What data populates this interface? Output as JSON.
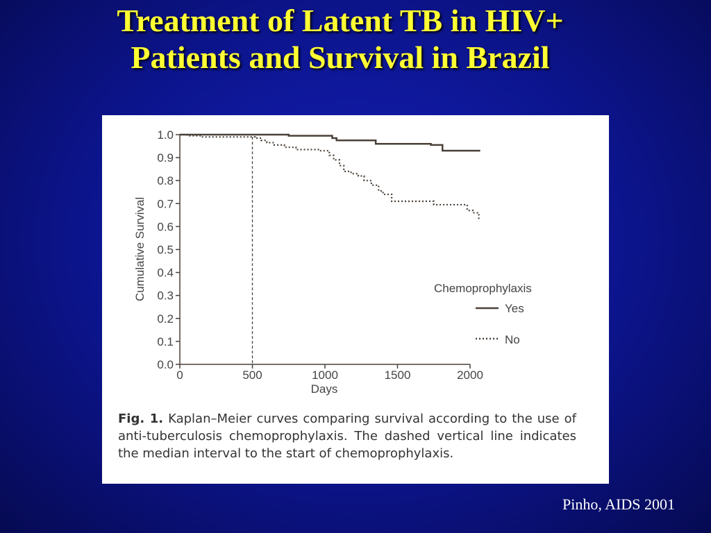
{
  "slide": {
    "title_line1": "Treatment of Latent TB in HIV+",
    "title_line2": "Patients and Survival in Brazil",
    "citation": "Pinho, AIDS 2001",
    "colors": {
      "background": "#0c148c",
      "title": "#ffff33",
      "citation": "#ffffff"
    }
  },
  "caption": {
    "label": "Fig. 1.",
    "text": "Kaplan–Meier curves comparing survival according to the use of anti-tuberculosis chemoprophylaxis. The dashed vertical line indicates the median interval to the start of chemoprophylaxis."
  },
  "chart_data": {
    "type": "line",
    "title": "",
    "xlabel": "Days",
    "ylabel": "Cumulative Survival",
    "xlim": [
      0,
      2000
    ],
    "ylim": [
      0.0,
      1.0
    ],
    "xticks": [
      "0",
      "500",
      "1000",
      "1500",
      "2000"
    ],
    "yticks": [
      "0.0",
      "0.1",
      "0.2",
      "0.3",
      "0.4",
      "0.5",
      "0.6",
      "0.7",
      "0.8",
      "0.9",
      "1.0"
    ],
    "grid": false,
    "legend": {
      "title": "Chemoprophylaxis",
      "placement": "right"
    },
    "reference_line": {
      "x": 500,
      "style": "dashed"
    },
    "series": [
      {
        "name": "Yes",
        "style": "solid",
        "x": [
          0,
          750,
          1050,
          1080,
          1350,
          1730,
          1810,
          2070
        ],
        "y": [
          1.0,
          0.995,
          0.985,
          0.975,
          0.96,
          0.955,
          0.93,
          0.93
        ]
      },
      {
        "name": "No",
        "style": "dotted",
        "x": [
          0,
          50,
          150,
          480,
          520,
          560,
          600,
          650,
          720,
          800,
          960,
          1030,
          1060,
          1100,
          1130,
          1180,
          1230,
          1270,
          1320,
          1370,
          1400,
          1460,
          1500,
          1750,
          1980,
          2020,
          2060
        ],
        "y": [
          1.0,
          0.995,
          0.99,
          0.99,
          0.985,
          0.975,
          0.965,
          0.955,
          0.945,
          0.935,
          0.93,
          0.91,
          0.89,
          0.865,
          0.84,
          0.83,
          0.82,
          0.8,
          0.78,
          0.755,
          0.74,
          0.71,
          0.71,
          0.695,
          0.67,
          0.66,
          0.63
        ]
      }
    ]
  }
}
